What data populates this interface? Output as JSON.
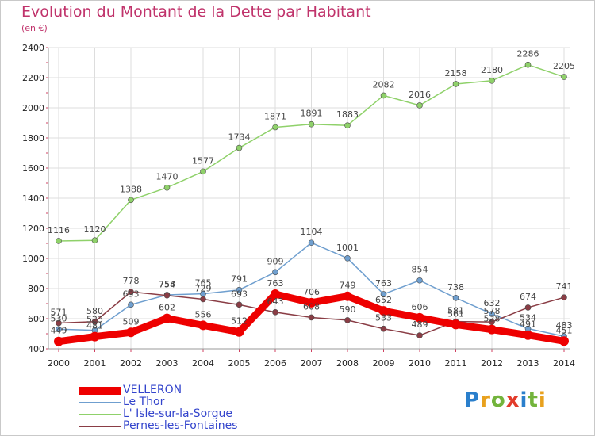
{
  "chart_data": {
    "type": "line",
    "title": "Evolution du Montant de la Dette par Habitant",
    "subtitle": "(en €)",
    "xlabel": "",
    "ylabel": "",
    "x": [
      "2000",
      "2001",
      "2002",
      "2003",
      "2004",
      "2005",
      "2006",
      "2007",
      "2008",
      "2009",
      "2010",
      "2011",
      "2012",
      "2013",
      "2014"
    ],
    "ylim": [
      400,
      2400
    ],
    "yticks": [
      400,
      600,
      800,
      1000,
      1200,
      1400,
      1600,
      1800,
      2000,
      2200,
      2400
    ],
    "grid": true,
    "legend_position": "bottom-left",
    "series": [
      {
        "name": "L' Isle-sur-la-Sorgue",
        "color": "#8fd16a",
        "values": [
          1116,
          1120,
          1388,
          1470,
          1577,
          1734,
          1871,
          1891,
          1883,
          2082,
          2016,
          2158,
          2180,
          2286,
          2205
        ]
      },
      {
        "name": "Le Thor",
        "color": "#6f9fcf",
        "values": [
          530,
          523,
          693,
          758,
          765,
          791,
          909,
          1104,
          1001,
          763,
          854,
          738,
          632,
          534,
          483
        ]
      },
      {
        "name": "Pernes-les-Fontaines",
        "color": "#8a3d45",
        "values": [
          571,
          580,
          778,
          754,
          729,
          693,
          643,
          608,
          590,
          533,
          489,
          581,
          578,
          674,
          741
        ]
      },
      {
        "name": "VELLERON",
        "color": "#ee0000",
        "values": [
          449,
          481,
          509,
          602,
          556,
          512,
          763,
          706,
          749,
          652,
          606,
          561,
          528,
          491,
          451
        ]
      }
    ]
  },
  "legend": [
    {
      "label": "VELLERON",
      "color": "#ee0000"
    },
    {
      "label": "Le Thor",
      "color": "#6f9fcf"
    },
    {
      "label": "L' Isle-sur-la-Sorgue",
      "color": "#8fd16a"
    },
    {
      "label": "Pernes-les-Fontaines",
      "color": "#8a3d45"
    }
  ],
  "logo": {
    "letters": [
      "P",
      "r",
      "o",
      "x",
      "i",
      "t",
      "i"
    ],
    "colors": [
      "#2a7fcc",
      "#e8a11e",
      "#73b43c",
      "#e23b2a",
      "#2a7fcc",
      "#73b43c",
      "#e8a11e"
    ]
  }
}
